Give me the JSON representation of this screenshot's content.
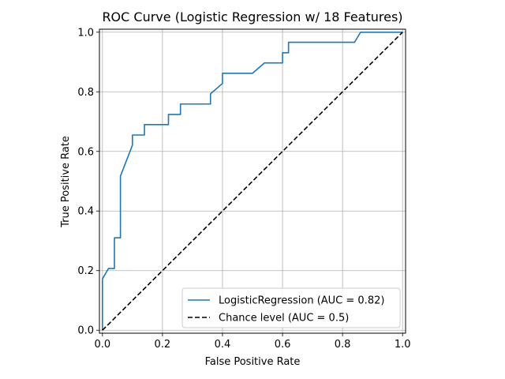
{
  "chart_data": {
    "type": "line",
    "title": "ROC Curve (Logistic Regression w/ 18 Features)",
    "xlabel": "False Positive Rate",
    "ylabel": "True Positive Rate",
    "xlim": [
      -0.01,
      1.01
    ],
    "ylim": [
      -0.01,
      1.01
    ],
    "xticks": [
      0.0,
      0.2,
      0.4,
      0.6,
      0.8,
      1.0
    ],
    "yticks": [
      0.0,
      0.2,
      0.4,
      0.6,
      0.8,
      1.0
    ],
    "xtick_labels": [
      "0.0",
      "0.2",
      "0.4",
      "0.6",
      "0.8",
      "1.0"
    ],
    "ytick_labels": [
      "0.0",
      "0.2",
      "0.4",
      "0.6",
      "0.8",
      "1.0"
    ],
    "grid": true,
    "legend_position": "lower-right",
    "series": [
      {
        "name": "LogisticRegression (AUC = 0.82)",
        "color": "#1f77b4",
        "style": "solid",
        "x": [
          0.0,
          0.0,
          0.02,
          0.02,
          0.04,
          0.04,
          0.06,
          0.06,
          0.1,
          0.1,
          0.14,
          0.14,
          0.22,
          0.22,
          0.26,
          0.26,
          0.36,
          0.36,
          0.4,
          0.4,
          0.5,
          0.54,
          0.6,
          0.6,
          0.62,
          0.62,
          0.84,
          0.86,
          1.0
        ],
        "y": [
          0.0,
          0.172,
          0.207,
          0.207,
          0.207,
          0.31,
          0.31,
          0.517,
          0.621,
          0.655,
          0.655,
          0.69,
          0.69,
          0.724,
          0.724,
          0.759,
          0.759,
          0.793,
          0.828,
          0.862,
          0.862,
          0.897,
          0.897,
          0.931,
          0.931,
          0.966,
          0.966,
          1.0,
          1.0
        ]
      },
      {
        "name": "Chance level (AUC = 0.5)",
        "color": "#000000",
        "style": "dashed",
        "x": [
          0.0,
          1.0
        ],
        "y": [
          0.0,
          1.0
        ]
      }
    ]
  }
}
